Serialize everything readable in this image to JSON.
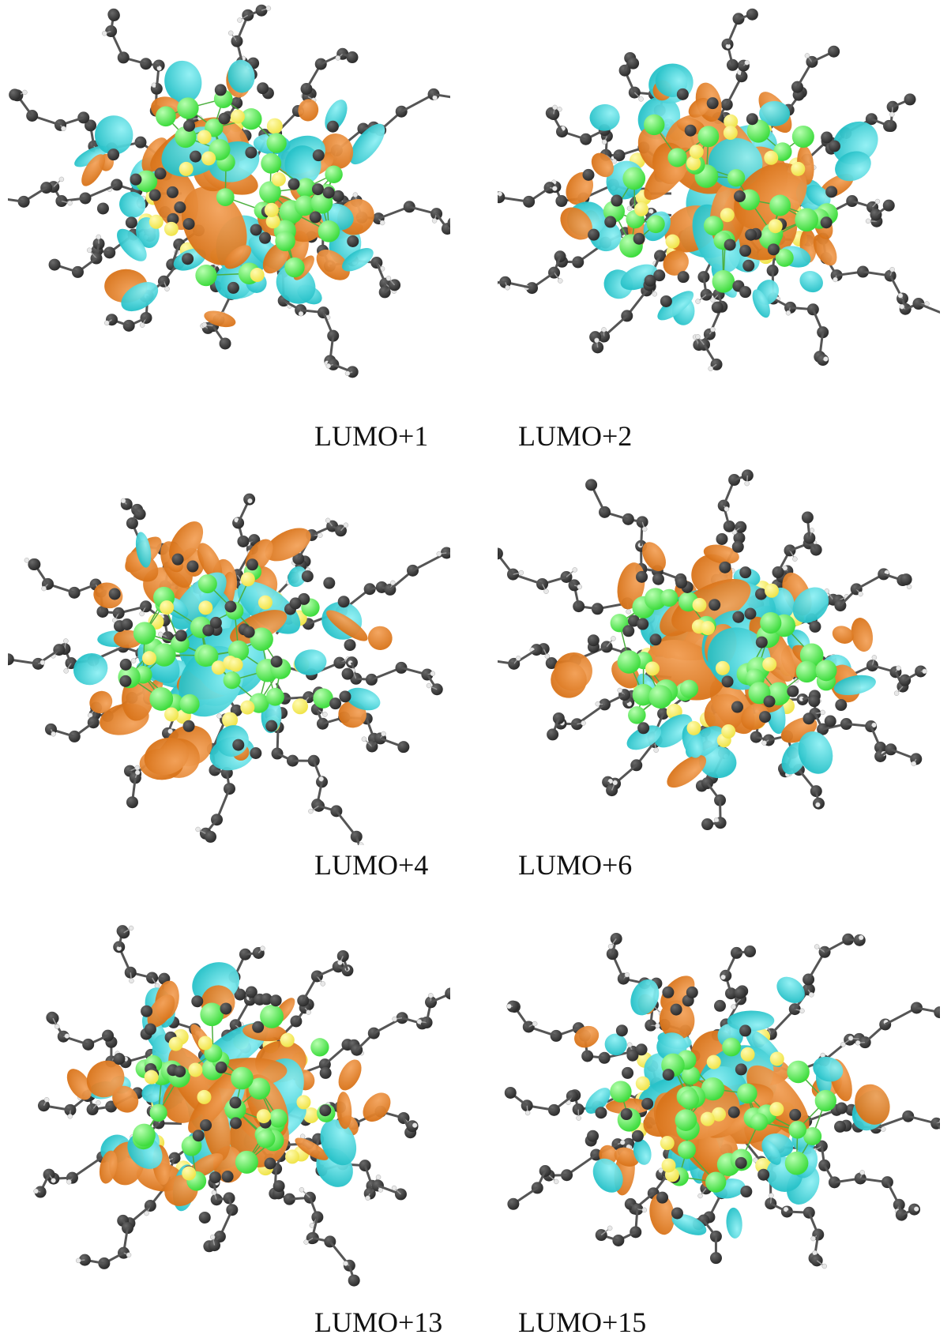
{
  "figure": {
    "captions": [
      "LUMO+1",
      "LUMO+2",
      "LUMO+4",
      "LUMO+6",
      "LUMO+13",
      "LUMO+15"
    ],
    "colors": {
      "carbon": "#2b2b2b",
      "hydrogen": "#e8e8e8",
      "sulfur": "#f0e44a",
      "metal": "#3ddc3d",
      "bond": "#4caf3f",
      "lobe_positive": "#d9741a",
      "lobe_negative": "#28c2c9"
    }
  }
}
